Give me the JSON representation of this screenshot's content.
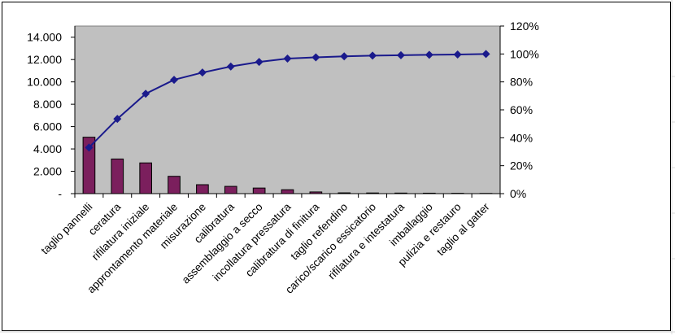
{
  "chart_data": {
    "type": "bar",
    "title": "",
    "xlabel": "",
    "ylabel": "",
    "categories": [
      "taglio pannelli",
      "ceratura",
      "rifilatura iniziale",
      "approntamento materiale",
      "misurazione",
      "calibratura",
      "assemblaggio a secco",
      "incollatura pressatura",
      "calibratura di finitura",
      "taglio refendino",
      "carico/scarico essicatorio",
      "rifilatura e intestatura",
      "imballaggio",
      "pulizia e restauro",
      "taglio al gatter"
    ],
    "series": [
      {
        "type": "bar",
        "axis": "left",
        "color": "#7b1f5d",
        "values": [
          5050,
          3100,
          2750,
          1550,
          800,
          650,
          500,
          350,
          150,
          70,
          60,
          50,
          40,
          30,
          20
        ]
      },
      {
        "type": "line",
        "axis": "right",
        "color": "#1a1a8c",
        "marker": "diamond",
        "values": [
          0.33,
          0.535,
          0.715,
          0.815,
          0.867,
          0.91,
          0.943,
          0.967,
          0.976,
          0.983,
          0.988,
          0.991,
          0.994,
          0.996,
          1.0
        ]
      }
    ],
    "y_left": {
      "ylim": [
        0,
        15000
      ],
      "ticks": [
        0,
        2000,
        4000,
        6000,
        8000,
        10000,
        12000,
        14000
      ],
      "tick_labels": [
        "-",
        "2.000",
        "4.000",
        "6.000",
        "8.000",
        "10.000",
        "12.000",
        "14.000"
      ]
    },
    "y_right": {
      "ylim": [
        0,
        1.2
      ],
      "ticks": [
        0,
        0.2,
        0.4,
        0.6,
        0.8,
        1.0,
        1.2
      ],
      "tick_labels": [
        "0%",
        "20%",
        "40%",
        "60%",
        "80%",
        "100%",
        "120%"
      ]
    },
    "plot_background": "#c0c0c0",
    "grid": false,
    "legend": "none"
  }
}
